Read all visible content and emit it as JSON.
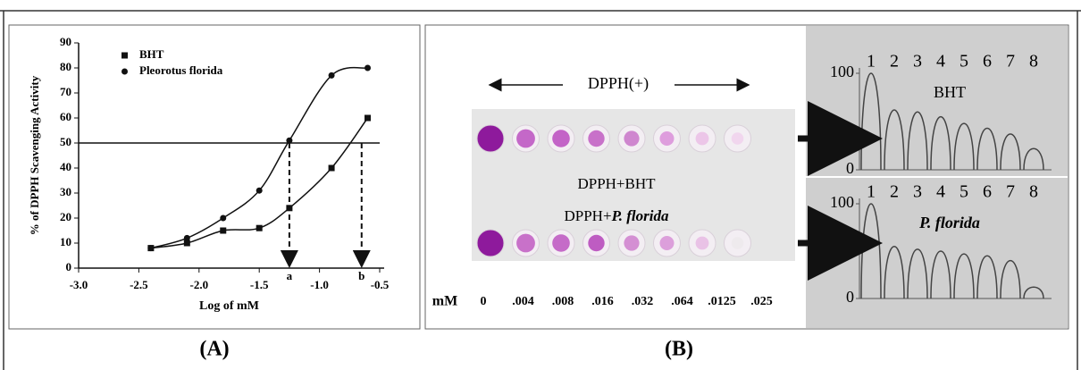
{
  "chart_data": [
    {
      "type": "scatter",
      "ylabel": "% of DPPH Scavenging Activity",
      "xlabel": "Log of mM",
      "xlim": [
        -3,
        -0.5
      ],
      "xticks": [
        {
          "value": -3,
          "label": "-3.0"
        },
        -2.5,
        {
          "value": -2,
          "label": "-2.0"
        },
        -1.5,
        {
          "value": -1,
          "label": "-1.0"
        },
        -0.5
      ],
      "ylim": [
        0,
        90
      ],
      "yticks": [
        0,
        10,
        20,
        30,
        40,
        50,
        60,
        70,
        80,
        90
      ],
      "legend": "top-left",
      "hline": 50,
      "markers": [
        {
          "label": "a",
          "x": -1.25
        },
        {
          "label": "b",
          "x": -0.65
        }
      ],
      "series": [
        {
          "name": "BHT",
          "marker": "square",
          "color": "#111111",
          "x": [
            -2.4,
            -2.1,
            -1.8,
            -1.5,
            -1.25,
            -0.9,
            -0.6
          ],
          "values": [
            8,
            10,
            15,
            16,
            24,
            40,
            60
          ]
        },
        {
          "name": "Pleorotus florida",
          "marker": "circle",
          "color": "#111111",
          "x": [
            -2.4,
            -2.1,
            -1.8,
            -1.5,
            -1.25,
            -0.9,
            -0.6
          ],
          "values": [
            8,
            12,
            20,
            31,
            51,
            77,
            80
          ]
        }
      ]
    },
    {
      "type": "peaks",
      "title": "BHT",
      "ylim": [
        0,
        100
      ],
      "yticks": [
        0,
        100
      ],
      "categories": [
        "1",
        "2",
        "3",
        "4",
        "5",
        "6",
        "7",
        "8"
      ],
      "values": [
        100,
        62,
        60,
        55,
        48,
        43,
        37,
        22
      ],
      "color": "#444444"
    },
    {
      "type": "peaks",
      "title": "P. florida",
      "ylim": [
        0,
        100
      ],
      "yticks": [
        0,
        100
      ],
      "categories": [
        "1",
        "2",
        "3",
        "4",
        "5",
        "6",
        "7",
        "8"
      ],
      "values": [
        100,
        55,
        52,
        50,
        47,
        45,
        40,
        12
      ],
      "color": "#444444"
    }
  ],
  "panel_b": {
    "arrow_label": "DPPH(+)",
    "rows": [
      {
        "label": [
          "DPPH+BHT"
        ],
        "colors": [
          "#8e1a9c",
          "#c468c8",
          "#c363c7",
          "#c871c9",
          "#cf86cf",
          "#de9ddd",
          "#ecc6e8",
          "#f1d6ee"
        ]
      },
      {
        "label": [
          "DPPH+",
          "P. florida"
        ],
        "colors": [
          "#8e1a9c",
          "#c871c9",
          "#c56bc8",
          "#be5cc2",
          "#d48fd3",
          "#dc9fdb",
          "#e9c2e6",
          "#eeeaed"
        ]
      }
    ],
    "unit": "mM",
    "concentrations": [
      "0",
      ".004",
      ".008",
      ".016",
      ".032",
      ".064",
      ".0125",
      ".025"
    ]
  },
  "panel_labels": [
    "(A)",
    "(B)"
  ]
}
